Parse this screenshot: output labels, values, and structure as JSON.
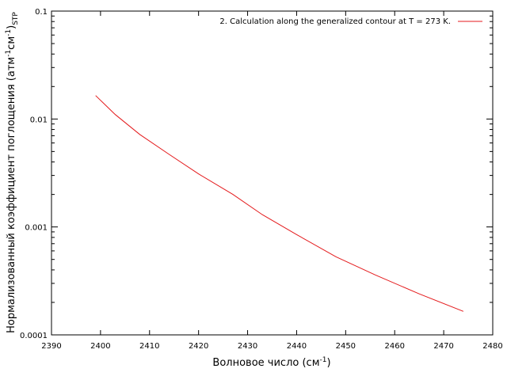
{
  "chart_data": {
    "type": "line",
    "xlabel": "Волновое число (см",
    "xlabel_sup": "-1",
    "xlabel_tail": ")",
    "ylabel": {
      "main": "Нормализованный коэффициент поглощения (атм",
      "sup1": "-1",
      "mid": "см",
      "sup2": "-1",
      "close": ")",
      "sub": "STP"
    },
    "xlim": [
      2390,
      2480
    ],
    "ylim": [
      0.0001,
      0.1
    ],
    "yscale": "log",
    "grid": false,
    "legend_position": "top-right",
    "x_ticks": [
      {
        "value": 2390,
        "label": "2390"
      },
      {
        "value": 2400,
        "label": "2400"
      },
      {
        "value": 2410,
        "label": "2410"
      },
      {
        "value": 2420,
        "label": "2420"
      },
      {
        "value": 2430,
        "label": "2430"
      },
      {
        "value": 2440,
        "label": "2440"
      },
      {
        "value": 2450,
        "label": "2450"
      },
      {
        "value": 2460,
        "label": "2460"
      },
      {
        "value": 2470,
        "label": "2470"
      },
      {
        "value": 2480,
        "label": "2480"
      }
    ],
    "y_ticks": [
      {
        "value": 0.1,
        "label": "0.1"
      },
      {
        "value": 0.01,
        "label": "0.01"
      },
      {
        "value": 0.001,
        "label": "0.001"
      },
      {
        "value": 0.0001,
        "label": "0.0001"
      }
    ],
    "series": [
      {
        "name": "2. Calculation along the generalized contour at T = 273 K.",
        "color": "#e41a1c",
        "x": [
          2399,
          2403,
          2408,
          2414,
          2420,
          2427,
          2433,
          2440,
          2448,
          2456,
          2465,
          2474
        ],
        "y": [
          0.0165,
          0.011,
          0.0072,
          0.0047,
          0.0031,
          0.002,
          0.0013,
          0.00085,
          0.00053,
          0.00036,
          0.00024,
          0.000165
        ]
      }
    ]
  }
}
